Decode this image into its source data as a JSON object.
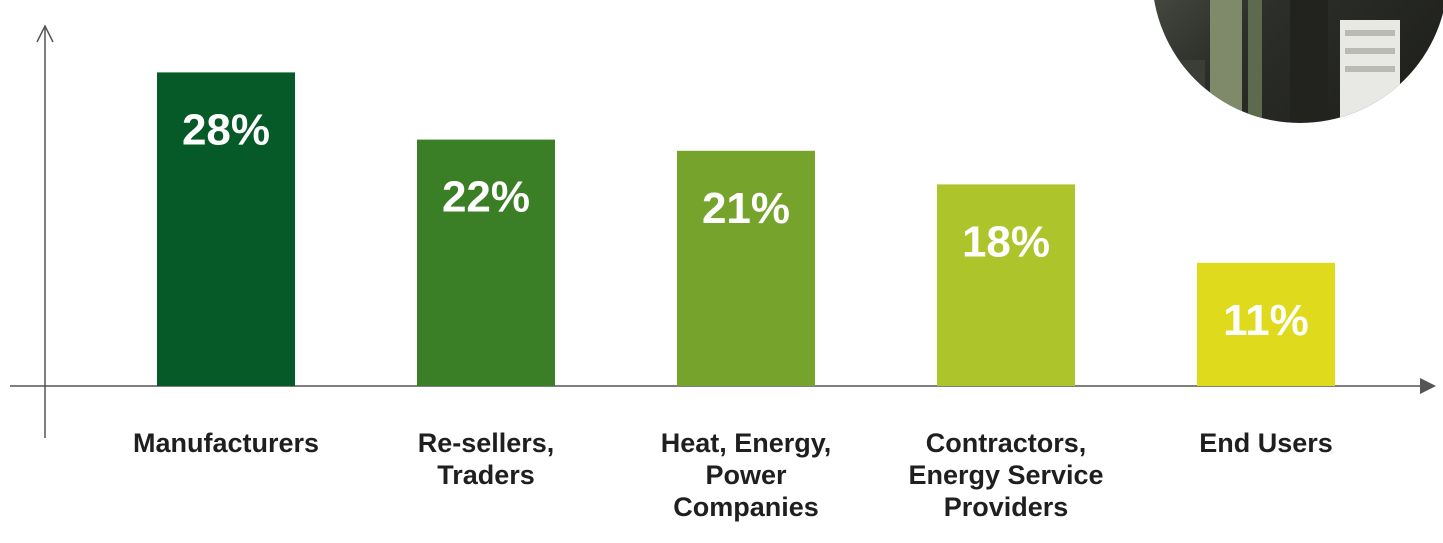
{
  "chart_data": {
    "type": "bar",
    "title": "",
    "xlabel": "",
    "ylabel": "",
    "ylim": [
      0,
      30
    ],
    "grid": false,
    "legend": "none",
    "categories": [
      [
        "Manufacturers"
      ],
      [
        "Re-sellers,",
        "Traders"
      ],
      [
        "Heat, Energy,",
        "Power",
        "Companies"
      ],
      [
        "Contractors,",
        "Energy Service",
        "Providers"
      ],
      [
        "End Users"
      ]
    ],
    "values": [
      28,
      22,
      21,
      18,
      11
    ],
    "value_labels": [
      "28%",
      "22%",
      "21%",
      "18%",
      "11%"
    ],
    "colors": [
      "#055a27",
      "#3a7f25",
      "#76a32c",
      "#adc52b",
      "#e0da1d"
    ],
    "axis_color": "#555555"
  }
}
